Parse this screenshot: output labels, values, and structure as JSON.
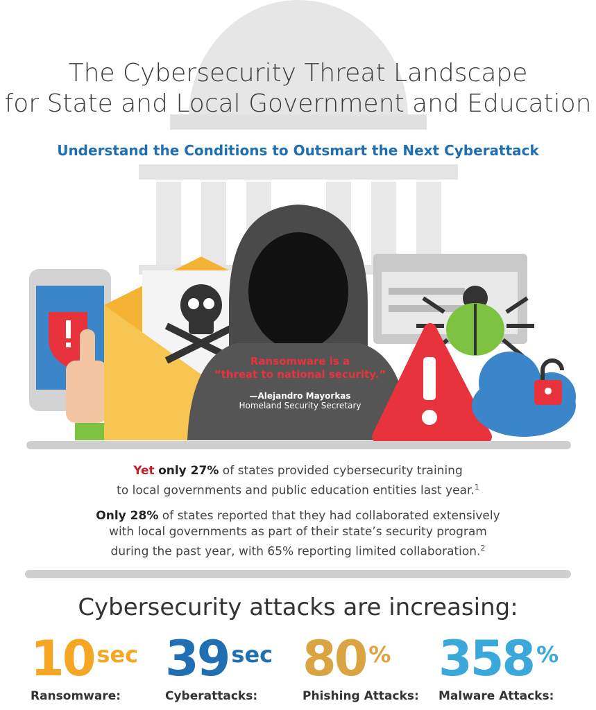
{
  "header": {
    "title_line1": "The Cybersecurity Threat Landscape",
    "title_line2": "for State and Local Government and Education",
    "subtitle": "Understand the Conditions to Outsmart the Next Cyberattack"
  },
  "quote": {
    "line1": "Ransomware is a",
    "line2": "“threat to national security.”",
    "attribution": "—Alejandro Mayorkas",
    "role": "Homeland Security Secretary"
  },
  "stats": {
    "p1_yet": "Yet",
    "p1_bold": "only 27%",
    "p1_rest": " of states provided cybersecurity training",
    "p1_line2": "to local governments and public education entities last year.",
    "p1_note": "1",
    "p2_bold": "Only 28%",
    "p2_rest": " of states reported that they had collaborated extensively",
    "p2_line2": "with local governments as part of their state’s security program",
    "p2_line3": "during the past year, with 65% reporting limited collaboration.",
    "p2_note": "2"
  },
  "attacks": {
    "heading": "Cybersecurity attacks are increasing:",
    "metrics": [
      {
        "value": "10",
        "unit": "sec",
        "label": "Ransomware:",
        "color": "#f5a623"
      },
      {
        "value": "39",
        "unit": "sec",
        "label": "Cyberattacks:",
        "color": "#1f6fb2"
      },
      {
        "value": "80",
        "unit": "%",
        "label": "Phishing Attacks:",
        "color": "#d9a441"
      },
      {
        "value": "358",
        "unit": "%",
        "label": "Malware Attacks:",
        "color": "#3aa8d8"
      }
    ]
  },
  "colors": {
    "accent_blue": "#1f6fb2",
    "alert_red": "#e8333c",
    "building_gray": "#e3e3e3"
  }
}
